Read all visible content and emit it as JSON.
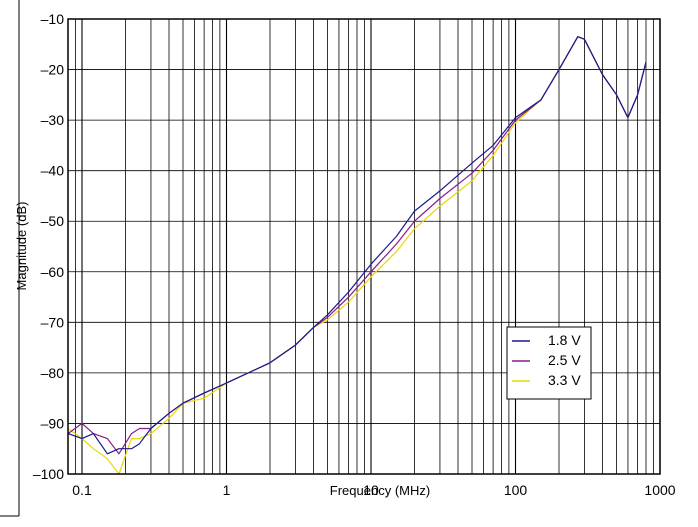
{
  "chart_data": {
    "type": "line",
    "title": "",
    "xlabel": "Frequency (MHz)",
    "ylabel": "Magnitude (dB)",
    "x_scale": "log",
    "xlim": [
      0.08,
      1000
    ],
    "ylim": [
      -100,
      -10
    ],
    "grid": true,
    "legend_position": "lower-right",
    "x_ticks": [
      0.1,
      1,
      10,
      100,
      1000
    ],
    "x_tick_labels": [
      "0.1",
      "1",
      "10",
      "100",
      "1000"
    ],
    "y_ticks": [
      -10,
      -20,
      -30,
      -40,
      -50,
      -60,
      -70,
      -80,
      -90,
      -100
    ],
    "y_tick_labels": [
      "–10",
      "–20",
      "–30",
      "–40",
      "–50",
      "–60",
      "–70",
      "–80",
      "–90",
      "–100"
    ],
    "series": [
      {
        "name": "1.8 V",
        "color": "#1a1a8c",
        "points": [
          [
            0.08,
            -92
          ],
          [
            0.1,
            -93
          ],
          [
            0.12,
            -92
          ],
          [
            0.15,
            -96
          ],
          [
            0.18,
            -95
          ],
          [
            0.22,
            -95
          ],
          [
            0.25,
            -94
          ],
          [
            0.3,
            -91
          ],
          [
            0.4,
            -88
          ],
          [
            0.5,
            -86
          ],
          [
            0.7,
            -84
          ],
          [
            1,
            -82
          ],
          [
            2,
            -78
          ],
          [
            3,
            -74.5
          ],
          [
            4,
            -71
          ],
          [
            5,
            -68.5
          ],
          [
            7,
            -64
          ],
          [
            10,
            -58.5
          ],
          [
            15,
            -53
          ],
          [
            20,
            -48
          ],
          [
            30,
            -44
          ],
          [
            50,
            -38.5
          ],
          [
            70,
            -35
          ],
          [
            100,
            -29.5
          ],
          [
            150,
            -26
          ],
          [
            200,
            -20
          ],
          [
            270,
            -13.5
          ],
          [
            300,
            -14
          ],
          [
            400,
            -21
          ],
          [
            500,
            -25
          ],
          [
            600,
            -29.5
          ],
          [
            700,
            -25
          ],
          [
            800,
            -18.5
          ]
        ]
      },
      {
        "name": "2.5 V",
        "color": "#8c1a8c",
        "points": [
          [
            0.08,
            -92
          ],
          [
            0.1,
            -90
          ],
          [
            0.12,
            -92
          ],
          [
            0.15,
            -93
          ],
          [
            0.18,
            -96
          ],
          [
            0.22,
            -92
          ],
          [
            0.25,
            -91
          ],
          [
            0.3,
            -91
          ],
          [
            0.4,
            -88
          ],
          [
            0.5,
            -86
          ],
          [
            0.7,
            -84
          ],
          [
            1,
            -82
          ],
          [
            2,
            -78
          ],
          [
            3,
            -74.5
          ],
          [
            4,
            -71
          ],
          [
            5,
            -69
          ],
          [
            7,
            -65
          ],
          [
            10,
            -60
          ],
          [
            15,
            -54.5
          ],
          [
            20,
            -50
          ],
          [
            30,
            -45.5
          ],
          [
            50,
            -40.5
          ],
          [
            70,
            -36
          ],
          [
            100,
            -30
          ],
          [
            150,
            -26
          ],
          [
            200,
            -20
          ],
          [
            270,
            -13.5
          ],
          [
            300,
            -14
          ],
          [
            400,
            -21
          ],
          [
            500,
            -25
          ],
          [
            600,
            -29.5
          ],
          [
            700,
            -25
          ],
          [
            800,
            -18.5
          ]
        ]
      },
      {
        "name": "3.3 V",
        "color": "#e8d800",
        "points": [
          [
            0.08,
            -91
          ],
          [
            0.1,
            -93
          ],
          [
            0.12,
            -95
          ],
          [
            0.15,
            -97
          ],
          [
            0.18,
            -100
          ],
          [
            0.22,
            -93
          ],
          [
            0.25,
            -93
          ],
          [
            0.3,
            -92
          ],
          [
            0.4,
            -89
          ],
          [
            0.5,
            -86
          ],
          [
            0.7,
            -85
          ],
          [
            1,
            -82
          ],
          [
            2,
            -78
          ],
          [
            3,
            -74.5
          ],
          [
            4,
            -71
          ],
          [
            5,
            -69.5
          ],
          [
            7,
            -66
          ],
          [
            10,
            -61
          ],
          [
            15,
            -56
          ],
          [
            20,
            -51.5
          ],
          [
            30,
            -47
          ],
          [
            50,
            -42
          ],
          [
            70,
            -37
          ],
          [
            100,
            -30.5
          ],
          [
            150,
            -26
          ],
          [
            200,
            -20
          ],
          [
            270,
            -13.5
          ],
          [
            300,
            -14
          ],
          [
            400,
            -21
          ],
          [
            500,
            -25
          ],
          [
            600,
            -29.5
          ],
          [
            700,
            -25
          ],
          [
            800,
            -18.5
          ]
        ]
      }
    ]
  }
}
